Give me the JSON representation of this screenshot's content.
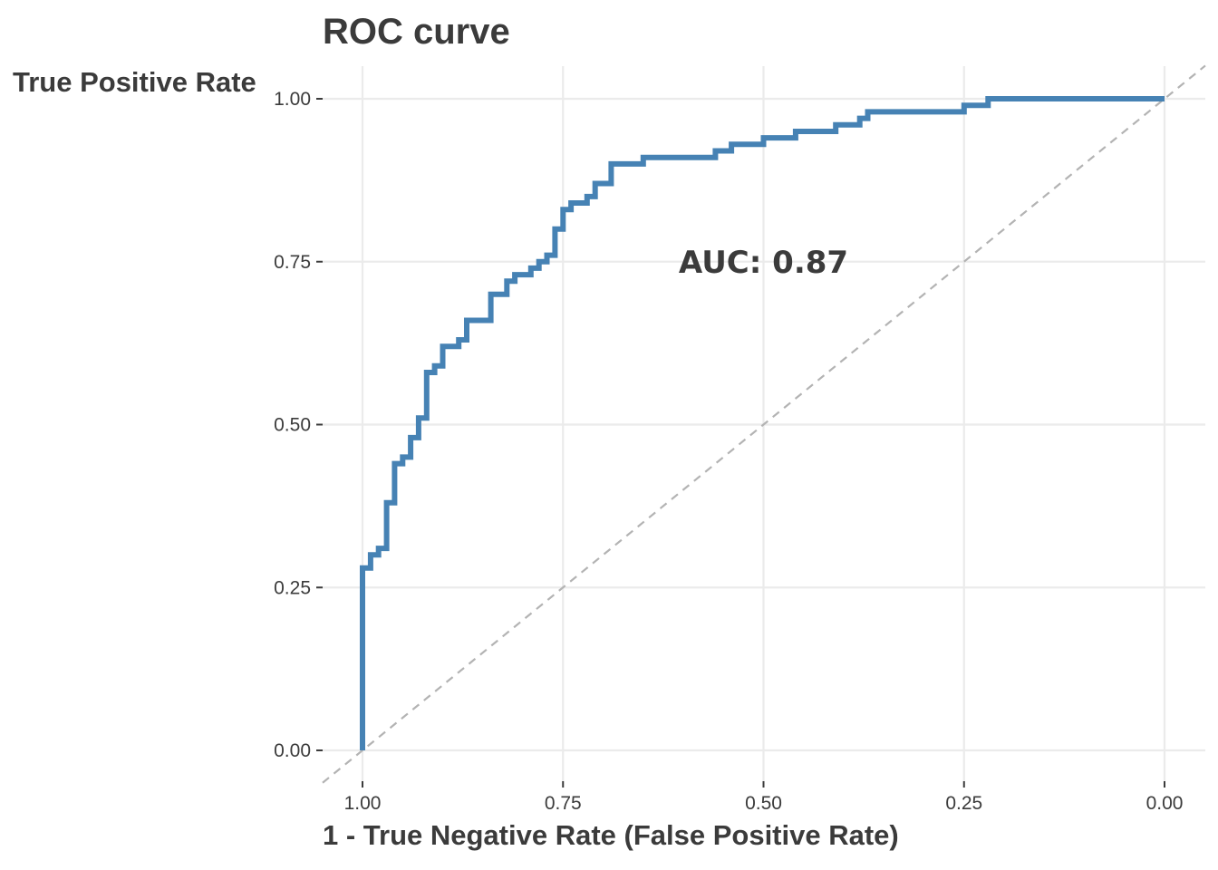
{
  "chart_data": {
    "type": "line",
    "title": "ROC curve",
    "xlabel": "1 - True Negative Rate (False Positive Rate)",
    "ylabel": "True Positive Rate",
    "xlim": [
      1.0,
      0.0
    ],
    "ylim": [
      0.0,
      1.0
    ],
    "x_reversed": true,
    "x_ticks": [
      "1.00",
      "0.75",
      "0.50",
      "0.25",
      "0.00"
    ],
    "y_ticks": [
      "0.00",
      "0.25",
      "0.50",
      "0.75",
      "1.00"
    ],
    "grid": true,
    "annotation": {
      "text": "AUC: 0.87",
      "x": 0.5,
      "y": 0.75
    },
    "colors": {
      "curve": "#4682b4",
      "reference": "#b3b3b3"
    },
    "series": [
      {
        "x": [
          1.0,
          1.0,
          0.99,
          0.99,
          0.98,
          0.98,
          0.97,
          0.97,
          0.96,
          0.96,
          0.95,
          0.95,
          0.94,
          0.94,
          0.93,
          0.93,
          0.92,
          0.92,
          0.91,
          0.91,
          0.9,
          0.9,
          0.88,
          0.88,
          0.87,
          0.87,
          0.84,
          0.84,
          0.82,
          0.82,
          0.81,
          0.81,
          0.79,
          0.79,
          0.78,
          0.78,
          0.77,
          0.77,
          0.76,
          0.76,
          0.75,
          0.75,
          0.74,
          0.74,
          0.72,
          0.72,
          0.71,
          0.71,
          0.69,
          0.69,
          0.65,
          0.65,
          0.64,
          0.64,
          0.56,
          0.56,
          0.54,
          0.54,
          0.5,
          0.5,
          0.46,
          0.46,
          0.45,
          0.45,
          0.41,
          0.41,
          0.38,
          0.38,
          0.37,
          0.37,
          0.34,
          0.34,
          0.25,
          0.25,
          0.22,
          0.22,
          0.17,
          0.17,
          0.0
        ],
        "y": [
          0.0,
          0.28,
          0.28,
          0.3,
          0.3,
          0.31,
          0.31,
          0.38,
          0.38,
          0.44,
          0.44,
          0.45,
          0.45,
          0.48,
          0.48,
          0.51,
          0.51,
          0.58,
          0.58,
          0.59,
          0.59,
          0.62,
          0.62,
          0.63,
          0.63,
          0.66,
          0.66,
          0.7,
          0.7,
          0.72,
          0.72,
          0.73,
          0.73,
          0.74,
          0.74,
          0.75,
          0.75,
          0.76,
          0.76,
          0.8,
          0.8,
          0.83,
          0.83,
          0.84,
          0.84,
          0.85,
          0.85,
          0.87,
          0.87,
          0.9,
          0.9,
          0.91,
          0.91,
          0.91,
          0.91,
          0.92,
          0.92,
          0.93,
          0.93,
          0.94,
          0.94,
          0.95,
          0.95,
          0.95,
          0.95,
          0.96,
          0.96,
          0.97,
          0.97,
          0.98,
          0.98,
          0.98,
          0.98,
          0.99,
          0.99,
          1.0,
          1.0,
          1.0,
          1.0
        ]
      },
      {
        "x": [
          1.0,
          0.0
        ],
        "y": [
          0.0,
          1.0
        ]
      }
    ]
  }
}
